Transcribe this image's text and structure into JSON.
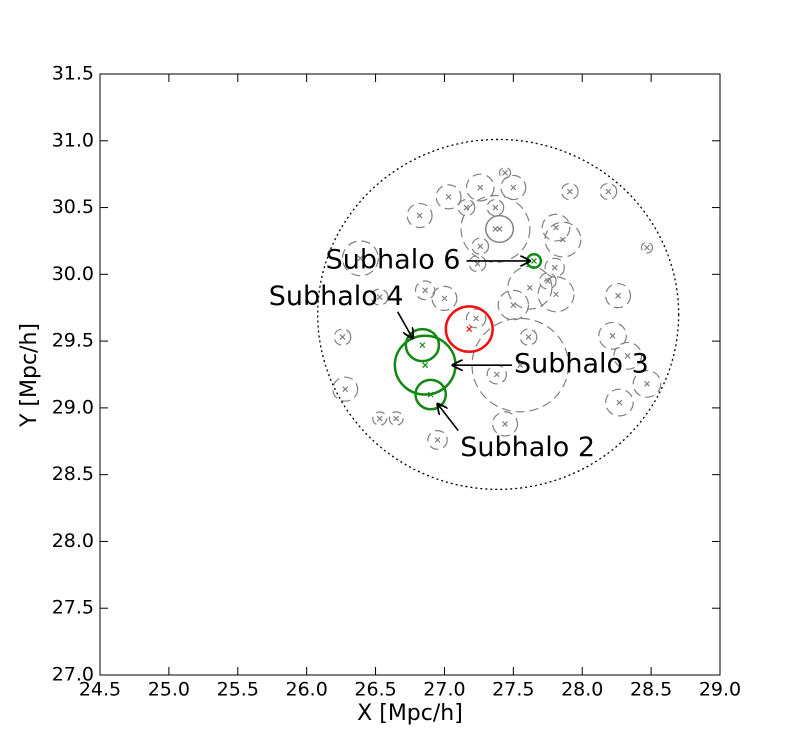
{
  "chart_data": {
    "type": "circles",
    "xlabel": "X [Mpc/h]",
    "ylabel": "Y [Mpc/h]",
    "xlim": [
      24.5,
      29.0
    ],
    "ylim": [
      27.0,
      31.5
    ],
    "xticks": [
      {
        "value": 24.5,
        "label": "24.5"
      },
      {
        "value": 25,
        "label": "25.0"
      },
      {
        "value": 25.5,
        "label": "25.5"
      },
      {
        "value": 26,
        "label": "26.0"
      },
      {
        "value": 26.5,
        "label": "26.5"
      },
      {
        "value": 27,
        "label": "27.0"
      },
      {
        "value": 27.5,
        "label": "27.5"
      },
      {
        "value": 28,
        "label": "28.0"
      },
      {
        "value": 28.5,
        "label": "28.5"
      },
      {
        "value": 29,
        "label": "29.0"
      }
    ],
    "yticks": [
      {
        "value": 27,
        "label": "27.0"
      },
      {
        "value": 27.5,
        "label": "27.5"
      },
      {
        "value": 28,
        "label": "28.0"
      },
      {
        "value": 28.5,
        "label": "28.5"
      },
      {
        "value": 29,
        "label": "29.0"
      },
      {
        "value": 29.5,
        "label": "29.5"
      },
      {
        "value": 30,
        "label": "30.0"
      },
      {
        "value": 30.5,
        "label": "30.5"
      },
      {
        "value": 31,
        "label": "31.0"
      },
      {
        "value": 31.5,
        "label": "31.5"
      }
    ],
    "groups": [
      {
        "color": "#808080",
        "linestyle": "dashed",
        "linewidth": 1.2,
        "x": [
          27.37,
          27.55,
          26.39,
          26.82,
          27.03,
          27.26,
          27.5,
          27.91,
          27.81,
          27.86,
          28.19,
          28.47,
          26.53,
          26.86,
          27.0,
          27.5,
          27.81,
          27.62,
          27.8,
          28.22,
          28.26,
          28.33,
          28.47,
          28.27,
          26.28,
          26.26,
          26.53,
          26.65,
          26.95,
          27.44,
          27.38,
          27.23,
          27.61,
          27.26,
          27.37,
          27.16,
          27.44,
          27.75,
          27.24
        ],
        "y": [
          30.34,
          29.32,
          30.12,
          30.44,
          30.58,
          30.65,
          30.65,
          30.62,
          30.35,
          30.26,
          30.62,
          30.2,
          29.83,
          29.88,
          29.82,
          29.77,
          29.85,
          29.9,
          30.05,
          29.54,
          29.84,
          29.39,
          29.18,
          29.04,
          29.14,
          29.53,
          28.92,
          28.92,
          28.76,
          28.88,
          29.25,
          29.67,
          29.53,
          30.21,
          30.5,
          30.5,
          30.76,
          29.95,
          30.08
        ],
        "r": [
          0.25,
          0.35,
          0.13,
          0.09,
          0.09,
          0.1,
          0.09,
          0.06,
          0.1,
          0.13,
          0.06,
          0.04,
          0.06,
          0.07,
          0.09,
          0.11,
          0.13,
          0.16,
          0.07,
          0.1,
          0.09,
          0.1,
          0.1,
          0.1,
          0.09,
          0.06,
          0.05,
          0.05,
          0.07,
          0.09,
          0.07,
          0.07,
          0.06,
          0.06,
          0.06,
          0.06,
          0.04,
          0.06,
          0.06
        ]
      },
      {
        "color": "#808080",
        "linestyle": "solid",
        "linewidth": 1.5,
        "x": [
          27.4
        ],
        "y": [
          30.34
        ],
        "r": [
          0.1
        ]
      },
      {
        "color": "#000000",
        "linestyle": "dotted",
        "linewidth": 1.3,
        "x": [
          27.39
        ],
        "y": [
          29.7
        ],
        "r": [
          1.31
        ]
      },
      {
        "color": "#ee1111",
        "linestyle": "solid",
        "linewidth": 2.5,
        "x": [
          27.18
        ],
        "y": [
          29.59
        ],
        "r": [
          0.17
        ]
      },
      {
        "color": "#118811",
        "linestyle": "solid",
        "linewidth": 2.5,
        "x": [
          26.86,
          26.84,
          26.9,
          27.65
        ],
        "y": [
          29.32,
          29.47,
          29.1,
          30.1
        ],
        "r": [
          0.22,
          0.12,
          0.11,
          0.05
        ]
      }
    ],
    "annotations": [
      {
        "text": "Subhalo 6",
        "xy": [
          27.62,
          30.1
        ],
        "xytext": [
          27.16,
          30.1
        ],
        "ha": "right",
        "va": "middle"
      },
      {
        "text": "Subhalo 4",
        "xy": [
          26.77,
          29.52
        ],
        "xytext": [
          26.66,
          29.72
        ],
        "ha": "right",
        "va": "bottom"
      },
      {
        "text": "Subhalo 3",
        "xy": [
          27.06,
          29.32
        ],
        "xytext": [
          27.49,
          29.32
        ],
        "ha": "left",
        "va": "middle"
      },
      {
        "text": "Subhalo 2",
        "xy": [
          26.95,
          29.03
        ],
        "xytext": [
          27.1,
          28.83
        ],
        "ha": "left",
        "va": "top"
      }
    ]
  }
}
